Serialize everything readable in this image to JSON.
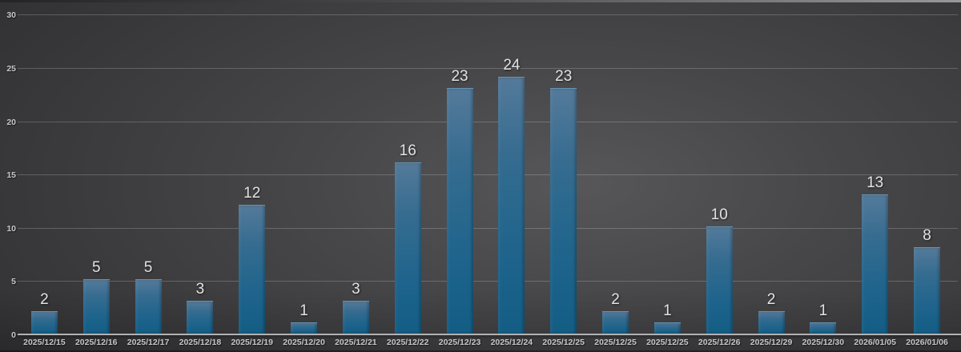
{
  "chart_data": {
    "type": "bar",
    "categories": [
      "2025/12/15",
      "2025/12/16",
      "2025/12/17",
      "2025/12/18",
      "2025/12/19",
      "2025/12/20",
      "2025/12/21",
      "2025/12/22",
      "2025/12/23",
      "2025/12/24",
      "2025/12/25",
      "2025/12/25",
      "2025/12/25",
      "2025/12/26",
      "2025/12/29",
      "2025/12/30",
      "2026/01/05",
      "2026/01/06"
    ],
    "values": [
      2,
      5,
      5,
      3,
      12,
      1,
      3,
      16,
      23,
      24,
      23,
      2,
      1,
      10,
      2,
      1,
      13,
      8
    ],
    "title": "",
    "xlabel": "",
    "ylabel": "",
    "ylim": [
      0,
      30
    ],
    "yticks": [
      0,
      5,
      10,
      15,
      20,
      25,
      30
    ],
    "grid": true,
    "legend": false,
    "colors": {
      "bar_top": "#547a9a",
      "bar_bottom": "#135d85",
      "value_label": "#e2e2e2",
      "axis_text": "#c6c6c8",
      "gridline": "rgba(255,255,255,0.20)",
      "axis_line": "#b2b2b4",
      "background_center": "#575759",
      "background_edge": "#2a2a2c"
    }
  }
}
